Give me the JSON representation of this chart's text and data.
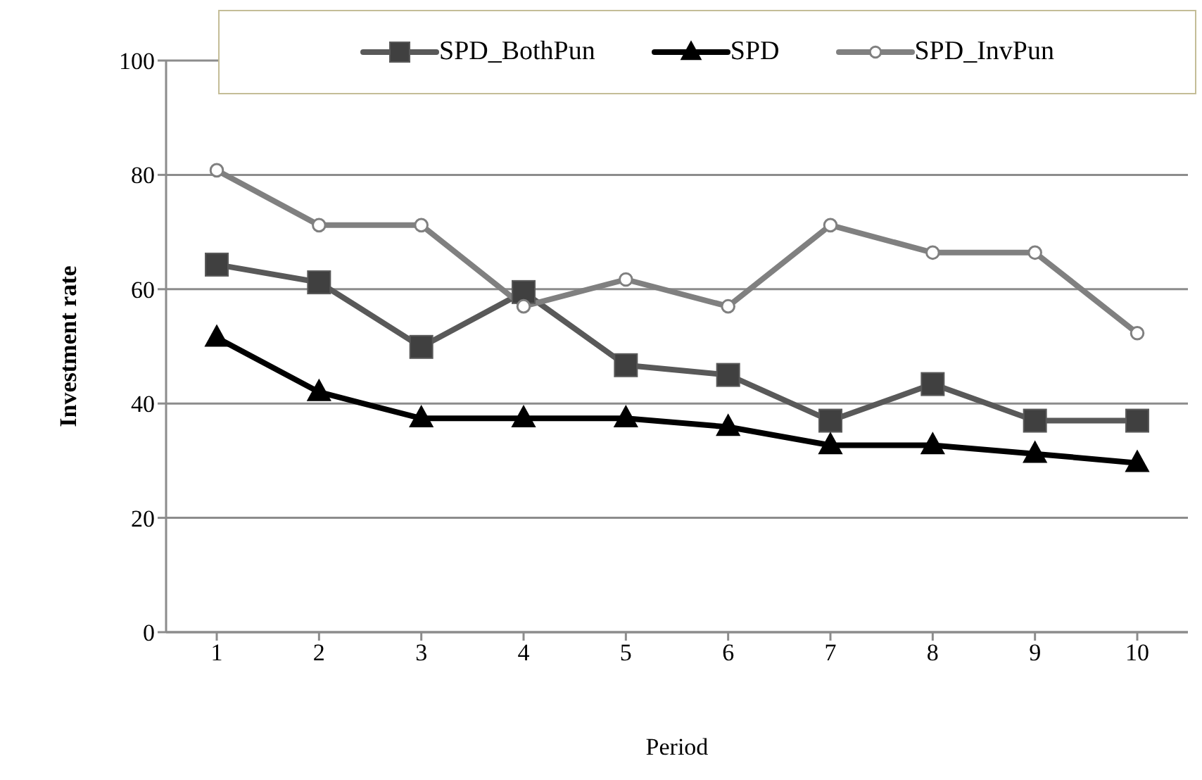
{
  "chart_data": {
    "type": "line",
    "xlabel": "Period",
    "ylabel": "Investment rate",
    "categories": [
      "1",
      "2",
      "3",
      "4",
      "5",
      "6",
      "7",
      "8",
      "9",
      "10"
    ],
    "ylim": [
      0,
      100
    ],
    "yticks": [
      0,
      20,
      40,
      60,
      80,
      100
    ],
    "grid": "y",
    "legend": "top right",
    "series": [
      {
        "name": "SPD_BothPun",
        "color": "#595959",
        "marker": "square",
        "values": [
          64.3,
          61.2,
          49.9,
          59.5,
          46.7,
          45,
          37,
          43.4,
          37,
          37
        ]
      },
      {
        "name": "SPD",
        "color": "#000000",
        "marker": "triangle",
        "values": [
          51.5,
          42,
          37.4,
          37.4,
          37.4,
          35.9,
          32.7,
          32.7,
          31.2,
          29.6
        ]
      },
      {
        "name": "SPD_InvPun",
        "color": "#808080",
        "marker": "circle",
        "values": [
          80.8,
          71.2,
          71.2,
          57,
          61.7,
          57,
          71.2,
          66.4,
          66.4,
          52.3
        ]
      }
    ]
  }
}
